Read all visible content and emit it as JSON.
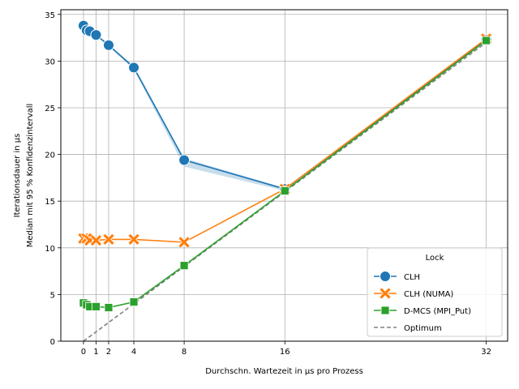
{
  "chart_data": {
    "type": "line",
    "title": "",
    "xlabel": "Durchschn. Wartezeit in µs pro Prozess",
    "ylabel_lines": [
      "Iterationsdauer in µs",
      "Median mit 95 % Konfidenzintervall"
    ],
    "xlim": [
      -1.8,
      33.7
    ],
    "ylim": [
      0,
      35.5
    ],
    "xticks": [
      0,
      1,
      2,
      4,
      8,
      16,
      32
    ],
    "yticks": [
      0,
      5,
      10,
      15,
      20,
      25,
      30,
      35
    ],
    "grid": true,
    "legend": {
      "title": "Lock",
      "position": "lower-right"
    },
    "series": [
      {
        "name": "CLH",
        "color": "#1f77b4",
        "marker": "circle",
        "points": [
          {
            "x": 0,
            "y": 33.8
          },
          {
            "x": 0.25,
            "y": 33.3
          },
          {
            "x": 0.5,
            "y": 33.2
          },
          {
            "x": 1,
            "y": 32.8
          },
          {
            "x": 2,
            "y": 31.7
          },
          {
            "x": 4,
            "y": 29.3
          },
          {
            "x": 8,
            "y": 19.4
          },
          {
            "x": 16,
            "y": 16.3
          },
          {
            "x": 32,
            "y": 32.3
          }
        ],
        "ci_low": [
          33.7,
          33.2,
          33.1,
          32.7,
          31.6,
          29.1,
          18.7,
          16.1,
          32.2
        ],
        "ci_high": [
          33.9,
          33.4,
          33.3,
          32.9,
          31.8,
          29.5,
          19.6,
          16.4,
          32.4
        ]
      },
      {
        "name": "CLH (NUMA)",
        "color": "#ff7f0e",
        "marker": "x",
        "points": [
          {
            "x": 0,
            "y": 11.0
          },
          {
            "x": 0.25,
            "y": 11.0
          },
          {
            "x": 0.5,
            "y": 10.8
          },
          {
            "x": 1,
            "y": 10.8
          },
          {
            "x": 2,
            "y": 10.9
          },
          {
            "x": 4,
            "y": 10.9
          },
          {
            "x": 8,
            "y": 10.6
          },
          {
            "x": 16,
            "y": 16.3
          },
          {
            "x": 32,
            "y": 32.4
          }
        ]
      },
      {
        "name": "D-MCS (MPI_Put)",
        "color": "#2ca02c",
        "marker": "square",
        "points": [
          {
            "x": 0,
            "y": 4.1
          },
          {
            "x": 0.25,
            "y": 3.9
          },
          {
            "x": 0.5,
            "y": 3.7
          },
          {
            "x": 1,
            "y": 3.7
          },
          {
            "x": 2,
            "y": 3.6
          },
          {
            "x": 4,
            "y": 4.2
          },
          {
            "x": 8,
            "y": 8.1
          },
          {
            "x": 16,
            "y": 16.1
          },
          {
            "x": 32,
            "y": 32.2
          }
        ]
      },
      {
        "name": "Optimum",
        "color": "#808080",
        "marker": "none",
        "dashed": true,
        "points": [
          {
            "x": 0,
            "y": 0
          },
          {
            "x": 32,
            "y": 32
          }
        ]
      }
    ]
  }
}
